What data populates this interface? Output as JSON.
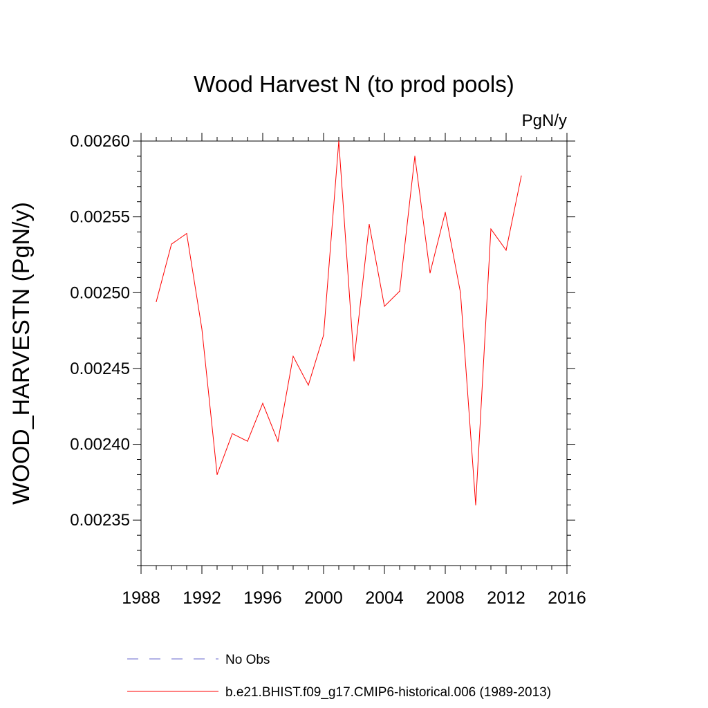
{
  "chart_data": {
    "type": "line",
    "title": "Wood Harvest N (to prod pools)",
    "units_label": "PgN/y",
    "ylabel": "WOOD_HARVESTN  (PgN/y)",
    "xlabel": "",
    "xlim": [
      1988,
      2016
    ],
    "ylim": [
      0.00232,
      0.0026
    ],
    "x_ticks": [
      "1988",
      "1992",
      "1996",
      "2000",
      "2004",
      "2008",
      "2012",
      "2016"
    ],
    "y_ticks": [
      "0.00235",
      "0.00240",
      "0.00245",
      "0.00250",
      "0.00255",
      "0.00260"
    ],
    "grid": false,
    "legend_position": "bottom",
    "x": [
      1989,
      1990,
      1991,
      1992,
      1993,
      1994,
      1995,
      1996,
      1997,
      1998,
      1999,
      2000,
      2001,
      2002,
      2003,
      2004,
      2005,
      2006,
      2007,
      2008,
      2009,
      2010,
      2011,
      2012,
      2013
    ],
    "series": [
      {
        "name": "b.e21.BHIST.f09_g17.CMIP6-historical.006 (1989-2013)",
        "color": "#ff0000",
        "style": "solid",
        "values": [
          0.002494,
          0.002532,
          0.002539,
          0.002476,
          0.00238,
          0.002407,
          0.002402,
          0.002427,
          0.002402,
          0.002458,
          0.002439,
          0.002472,
          0.0026,
          0.002455,
          0.002545,
          0.002491,
          0.002501,
          0.00259,
          0.002513,
          0.002553,
          0.0025,
          0.00236,
          0.002542,
          0.002528,
          0.002577
        ]
      }
    ],
    "legend": [
      {
        "label": "No Obs",
        "color": "#6666cc",
        "style": "dashed"
      },
      {
        "label": "b.e21.BHIST.f09_g17.CMIP6-historical.006 (1989-2013)",
        "color": "#ff0000",
        "style": "solid"
      }
    ]
  }
}
